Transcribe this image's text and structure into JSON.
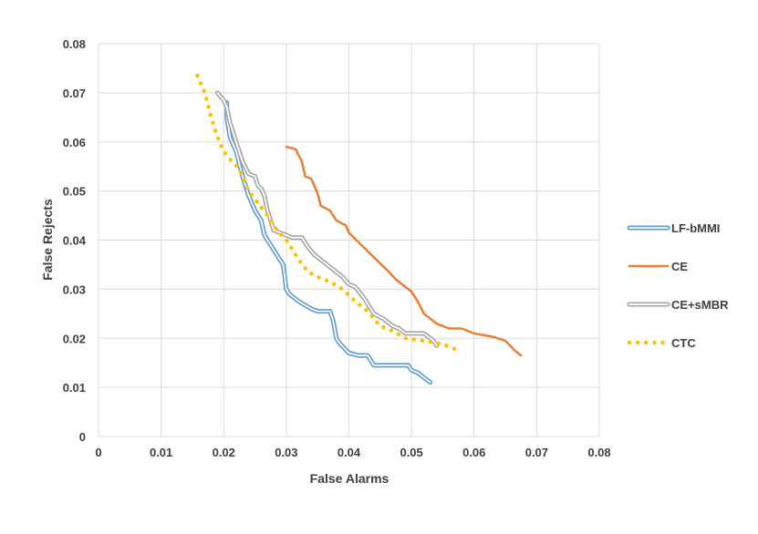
{
  "chart_data": {
    "type": "line",
    "title": "",
    "xlabel": "False Alarms",
    "ylabel": "False Rejects",
    "xlim": [
      0,
      0.08
    ],
    "ylim": [
      0,
      0.08
    ],
    "x_ticks": [
      "0",
      "0.01",
      "0.02",
      "0.03",
      "0.04",
      "0.05",
      "0.06",
      "0.07",
      "0.08"
    ],
    "y_ticks": [
      "0",
      "0.01",
      "0.02",
      "0.03",
      "0.04",
      "0.05",
      "0.06",
      "0.07",
      "0.08"
    ],
    "grid": "vertical and horizontal",
    "legend_position": "right",
    "series": [
      {
        "name": "LF-bMMI",
        "color": "#5b9bd5",
        "style": "double-line",
        "points": [
          [
            0.0205,
            0.068
          ],
          [
            0.0205,
            0.065
          ],
          [
            0.021,
            0.061
          ],
          [
            0.022,
            0.058
          ],
          [
            0.023,
            0.053
          ],
          [
            0.024,
            0.049
          ],
          [
            0.025,
            0.046
          ],
          [
            0.026,
            0.044
          ],
          [
            0.0265,
            0.041
          ],
          [
            0.028,
            0.038
          ],
          [
            0.029,
            0.036
          ],
          [
            0.0295,
            0.035
          ],
          [
            0.03,
            0.03
          ],
          [
            0.0305,
            0.029
          ],
          [
            0.032,
            0.0275
          ],
          [
            0.034,
            0.026
          ],
          [
            0.035,
            0.0255
          ],
          [
            0.037,
            0.0255
          ],
          [
            0.0375,
            0.0235
          ],
          [
            0.038,
            0.02
          ],
          [
            0.0385,
            0.019
          ],
          [
            0.04,
            0.017
          ],
          [
            0.0415,
            0.0165
          ],
          [
            0.043,
            0.0165
          ],
          [
            0.044,
            0.0145
          ],
          [
            0.047,
            0.0145
          ],
          [
            0.0495,
            0.0145
          ],
          [
            0.05,
            0.0135
          ],
          [
            0.051,
            0.013
          ],
          [
            0.052,
            0.012
          ],
          [
            0.053,
            0.011
          ]
        ]
      },
      {
        "name": "CE",
        "color": "#ed7d31",
        "style": "solid",
        "points": [
          [
            0.03,
            0.059
          ],
          [
            0.0315,
            0.0585
          ],
          [
            0.0325,
            0.056
          ],
          [
            0.033,
            0.053
          ],
          [
            0.034,
            0.0525
          ],
          [
            0.035,
            0.0495
          ],
          [
            0.0355,
            0.047
          ],
          [
            0.037,
            0.046
          ],
          [
            0.038,
            0.044
          ],
          [
            0.0395,
            0.043
          ],
          [
            0.04,
            0.0415
          ],
          [
            0.042,
            0.039
          ],
          [
            0.044,
            0.0365
          ],
          [
            0.046,
            0.034
          ],
          [
            0.0475,
            0.032
          ],
          [
            0.049,
            0.0305
          ],
          [
            0.05,
            0.0295
          ],
          [
            0.051,
            0.0275
          ],
          [
            0.052,
            0.025
          ],
          [
            0.054,
            0.023
          ],
          [
            0.056,
            0.022
          ],
          [
            0.058,
            0.022
          ],
          [
            0.06,
            0.021
          ],
          [
            0.063,
            0.0203
          ],
          [
            0.065,
            0.0195
          ],
          [
            0.0665,
            0.0175
          ],
          [
            0.0675,
            0.0165
          ]
        ]
      },
      {
        "name": "CE+sMBR",
        "color": "#a5a5a5",
        "style": "double-line",
        "points": [
          [
            0.019,
            0.07
          ],
          [
            0.02,
            0.0685
          ],
          [
            0.0205,
            0.067
          ],
          [
            0.021,
            0.064
          ],
          [
            0.0215,
            0.062
          ],
          [
            0.022,
            0.06
          ],
          [
            0.023,
            0.056
          ],
          [
            0.024,
            0.0535
          ],
          [
            0.025,
            0.053
          ],
          [
            0.0255,
            0.051
          ],
          [
            0.026,
            0.0505
          ],
          [
            0.0265,
            0.049
          ],
          [
            0.027,
            0.046
          ],
          [
            0.028,
            0.042
          ],
          [
            0.029,
            0.0415
          ],
          [
            0.03,
            0.041
          ],
          [
            0.031,
            0.0405
          ],
          [
            0.0325,
            0.0405
          ],
          [
            0.0335,
            0.0385
          ],
          [
            0.0345,
            0.037
          ],
          [
            0.036,
            0.0355
          ],
          [
            0.0375,
            0.034
          ],
          [
            0.039,
            0.0325
          ],
          [
            0.04,
            0.031
          ],
          [
            0.041,
            0.0305
          ],
          [
            0.0425,
            0.028
          ],
          [
            0.044,
            0.025
          ],
          [
            0.0455,
            0.024
          ],
          [
            0.047,
            0.0225
          ],
          [
            0.048,
            0.022
          ],
          [
            0.049,
            0.021
          ],
          [
            0.052,
            0.021
          ],
          [
            0.0535,
            0.0195
          ],
          [
            0.054,
            0.0185
          ]
        ]
      },
      {
        "name": "CTC",
        "color": "#ffc000",
        "style": "dotted",
        "points": [
          [
            0.0158,
            0.0735
          ],
          [
            0.017,
            0.07
          ],
          [
            0.018,
            0.065
          ],
          [
            0.019,
            0.061
          ],
          [
            0.02,
            0.058
          ],
          [
            0.021,
            0.0565
          ],
          [
            0.0225,
            0.0545
          ],
          [
            0.024,
            0.05
          ],
          [
            0.0255,
            0.0475
          ],
          [
            0.027,
            0.045
          ],
          [
            0.0285,
            0.042
          ],
          [
            0.03,
            0.04
          ],
          [
            0.032,
            0.036
          ],
          [
            0.0335,
            0.0335
          ],
          [
            0.035,
            0.0325
          ],
          [
            0.037,
            0.0315
          ],
          [
            0.039,
            0.03
          ],
          [
            0.041,
            0.0275
          ],
          [
            0.043,
            0.0255
          ],
          [
            0.045,
            0.0225
          ],
          [
            0.047,
            0.0215
          ],
          [
            0.049,
            0.02
          ],
          [
            0.052,
            0.0195
          ],
          [
            0.055,
            0.0188
          ],
          [
            0.0575,
            0.0175
          ]
        ]
      }
    ]
  }
}
